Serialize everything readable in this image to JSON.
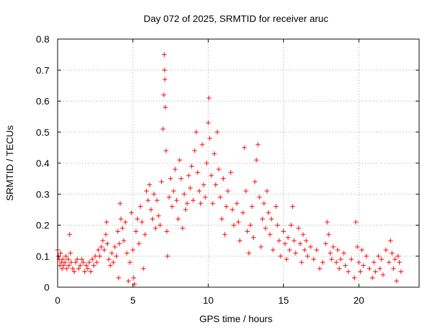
{
  "chart_data": {
    "type": "scatter",
    "title": "Day 072 of 2025, SRMTID for receiver aruc",
    "xlabel": "GPS time / hours",
    "ylabel": "SRMTID / TECUs",
    "xlim": [
      0,
      24
    ],
    "ylim": [
      0,
      0.8
    ],
    "xticks": [
      "0",
      "5",
      "10",
      "15",
      "20"
    ],
    "yticks": [
      "0",
      "0.1",
      "0.2",
      "0.3",
      "0.4",
      "0.5",
      "0.6",
      "0.7",
      "0.8"
    ],
    "grid": true,
    "marker": "plus",
    "color": "#ff0000",
    "series": [
      {
        "name": "SRMTID",
        "points": [
          [
            0.0,
            0.12
          ],
          [
            0.05,
            0.1
          ],
          [
            0.1,
            0.09
          ],
          [
            0.15,
            0.07
          ],
          [
            0.2,
            0.11
          ],
          [
            0.25,
            0.08
          ],
          [
            0.3,
            0.06
          ],
          [
            0.35,
            0.09
          ],
          [
            0.4,
            0.07
          ],
          [
            0.5,
            0.08
          ],
          [
            0.55,
            0.1
          ],
          [
            0.6,
            0.06
          ],
          [
            0.7,
            0.09
          ],
          [
            0.75,
            0.07
          ],
          [
            0.8,
            0.17
          ],
          [
            0.85,
            0.11
          ],
          [
            0.9,
            0.08
          ],
          [
            1.0,
            0.06
          ],
          [
            1.1,
            0.05
          ],
          [
            1.2,
            0.08
          ],
          [
            1.3,
            0.09
          ],
          [
            1.4,
            0.06
          ],
          [
            1.5,
            0.07
          ],
          [
            1.6,
            0.09
          ],
          [
            1.7,
            0.08
          ],
          [
            1.8,
            0.05
          ],
          [
            1.9,
            0.07
          ],
          [
            2.0,
            0.06
          ],
          [
            2.1,
            0.08
          ],
          [
            2.2,
            0.05
          ],
          [
            2.3,
            0.09
          ],
          [
            2.4,
            0.07
          ],
          [
            2.5,
            0.1
          ],
          [
            2.6,
            0.08
          ],
          [
            2.7,
            0.12
          ],
          [
            2.8,
            0.1
          ],
          [
            2.9,
            0.13
          ],
          [
            3.0,
            0.15
          ],
          [
            3.1,
            0.12
          ],
          [
            3.2,
            0.17
          ],
          [
            3.25,
            0.21
          ],
          [
            3.3,
            0.14
          ],
          [
            3.4,
            0.09
          ],
          [
            3.5,
            0.07
          ],
          [
            3.6,
            0.11
          ],
          [
            3.7,
            0.08
          ],
          [
            3.8,
            0.13
          ],
          [
            3.9,
            0.1
          ],
          [
            4.0,
            0.18
          ],
          [
            4.05,
            0.03
          ],
          [
            4.1,
            0.14
          ],
          [
            4.15,
            0.27
          ],
          [
            4.2,
            0.22
          ],
          [
            4.3,
            0.19
          ],
          [
            4.4,
            0.15
          ],
          [
            4.5,
            0.21
          ],
          [
            4.6,
            0.11
          ],
          [
            4.7,
            0.02
          ],
          [
            4.8,
            0.08
          ],
          [
            4.9,
            0.24
          ],
          [
            5.0,
            0.12
          ],
          [
            5.05,
            0.03
          ],
          [
            5.1,
            0.01
          ],
          [
            5.2,
            0.18
          ],
          [
            5.3,
            0.22
          ],
          [
            5.4,
            0.14
          ],
          [
            5.5,
            0.26
          ],
          [
            5.6,
            0.21
          ],
          [
            5.7,
            0.06
          ],
          [
            5.8,
            0.17
          ],
          [
            5.9,
            0.31
          ],
          [
            6.0,
            0.28
          ],
          [
            6.1,
            0.33
          ],
          [
            6.2,
            0.25
          ],
          [
            6.3,
            0.22
          ],
          [
            6.4,
            0.3
          ],
          [
            6.5,
            0.19
          ],
          [
            6.6,
            0.28
          ],
          [
            6.7,
            0.23
          ],
          [
            6.8,
            0.2
          ],
          [
            6.9,
            0.34
          ],
          [
            7.0,
            0.51
          ],
          [
            7.05,
            0.62
          ],
          [
            7.08,
            0.75
          ],
          [
            7.1,
            0.7
          ],
          [
            7.12,
            0.67
          ],
          [
            7.15,
            0.58
          ],
          [
            7.2,
            0.44
          ],
          [
            7.25,
            0.18
          ],
          [
            7.3,
            0.1
          ],
          [
            7.4,
            0.29
          ],
          [
            7.5,
            0.35
          ],
          [
            7.6,
            0.26
          ],
          [
            7.7,
            0.31
          ],
          [
            7.8,
            0.38
          ],
          [
            7.9,
            0.28
          ],
          [
            8.0,
            0.22
          ],
          [
            8.1,
            0.41
          ],
          [
            8.2,
            0.35
          ],
          [
            8.3,
            0.19
          ],
          [
            8.4,
            0.3
          ],
          [
            8.5,
            0.25
          ],
          [
            8.6,
            0.27
          ],
          [
            8.7,
            0.36
          ],
          [
            8.8,
            0.32
          ],
          [
            8.9,
            0.39
          ],
          [
            9.0,
            0.28
          ],
          [
            9.1,
            0.44
          ],
          [
            9.2,
            0.5
          ],
          [
            9.3,
            0.37
          ],
          [
            9.4,
            0.31
          ],
          [
            9.5,
            0.27
          ],
          [
            9.6,
            0.46
          ],
          [
            9.7,
            0.33
          ],
          [
            9.8,
            0.29
          ],
          [
            9.9,
            0.4
          ],
          [
            10.0,
            0.53
          ],
          [
            10.05,
            0.61
          ],
          [
            10.1,
            0.48
          ],
          [
            10.2,
            0.36
          ],
          [
            10.3,
            0.27
          ],
          [
            10.4,
            0.43
          ],
          [
            10.5,
            0.33
          ],
          [
            10.6,
            0.5
          ],
          [
            10.7,
            0.38
          ],
          [
            10.8,
            0.29
          ],
          [
            10.9,
            0.22
          ],
          [
            11.0,
            0.35
          ],
          [
            11.1,
            0.17
          ],
          [
            11.2,
            0.26
          ],
          [
            11.3,
            0.31
          ],
          [
            11.5,
            0.37
          ],
          [
            11.6,
            0.25
          ],
          [
            11.7,
            0.2
          ],
          [
            11.9,
            0.27
          ],
          [
            12.0,
            0.21
          ],
          [
            12.1,
            0.15
          ],
          [
            12.3,
            0.24
          ],
          [
            12.4,
            0.45
          ],
          [
            12.5,
            0.31
          ],
          [
            12.6,
            0.18
          ],
          [
            12.7,
            0.11
          ],
          [
            12.8,
            0.2
          ],
          [
            12.9,
            0.26
          ],
          [
            13.0,
            0.16
          ],
          [
            13.1,
            0.34
          ],
          [
            13.2,
            0.41
          ],
          [
            13.3,
            0.46
          ],
          [
            13.4,
            0.29
          ],
          [
            13.5,
            0.13
          ],
          [
            13.6,
            0.22
          ],
          [
            13.7,
            0.27
          ],
          [
            13.8,
            0.19
          ],
          [
            13.9,
            0.31
          ],
          [
            14.0,
            0.24
          ],
          [
            14.1,
            0.17
          ],
          [
            14.2,
            0.22
          ],
          [
            14.3,
            0.12
          ],
          [
            14.5,
            0.26
          ],
          [
            14.6,
            0.2
          ],
          [
            14.7,
            0.15
          ],
          [
            14.8,
            0.1
          ],
          [
            15.0,
            0.18
          ],
          [
            15.1,
            0.14
          ],
          [
            15.2,
            0.09
          ],
          [
            15.3,
            0.16
          ],
          [
            15.4,
            0.12
          ],
          [
            15.5,
            0.2
          ],
          [
            15.6,
            0.26
          ],
          [
            15.7,
            0.15
          ],
          [
            15.8,
            0.11
          ],
          [
            16.0,
            0.19
          ],
          [
            16.1,
            0.14
          ],
          [
            16.2,
            0.08
          ],
          [
            16.3,
            0.17
          ],
          [
            16.4,
            0.12
          ],
          [
            16.5,
            0.15
          ],
          [
            16.6,
            0.1
          ],
          [
            16.8,
            0.13
          ],
          [
            17.0,
            0.09
          ],
          [
            17.2,
            0.12
          ],
          [
            17.4,
            0.06
          ],
          [
            17.6,
            0.08
          ],
          [
            17.8,
            0.14
          ],
          [
            17.9,
            0.21
          ],
          [
            18.0,
            0.17
          ],
          [
            18.1,
            0.11
          ],
          [
            18.2,
            0.09
          ],
          [
            18.3,
            0.13
          ],
          [
            18.5,
            0.08
          ],
          [
            18.6,
            0.12
          ],
          [
            18.7,
            0.06
          ],
          [
            18.8,
            0.09
          ],
          [
            19.0,
            0.11
          ],
          [
            19.1,
            0.07
          ],
          [
            19.3,
            0.05
          ],
          [
            19.5,
            0.09
          ],
          [
            19.7,
            0.03
          ],
          [
            19.8,
            0.21
          ],
          [
            19.9,
            0.13
          ],
          [
            20.0,
            0.08
          ],
          [
            20.1,
            0.05
          ],
          [
            20.2,
            0.12
          ],
          [
            20.3,
            0.07
          ],
          [
            20.5,
            0.1
          ],
          [
            20.7,
            0.06
          ],
          [
            20.9,
            0.03
          ],
          [
            21.0,
            0.08
          ],
          [
            21.1,
            0.05
          ],
          [
            21.3,
            0.1
          ],
          [
            21.4,
            0.06
          ],
          [
            21.5,
            0.09
          ],
          [
            21.6,
            0.04
          ],
          [
            21.8,
            0.12
          ],
          [
            22.0,
            0.08
          ],
          [
            22.1,
            0.15
          ],
          [
            22.2,
            0.11
          ],
          [
            22.3,
            0.06
          ],
          [
            22.4,
            0.09
          ],
          [
            22.5,
            0.02
          ],
          [
            22.6,
            0.1
          ],
          [
            22.7,
            0.08
          ],
          [
            22.8,
            0.05
          ]
        ]
      }
    ]
  }
}
